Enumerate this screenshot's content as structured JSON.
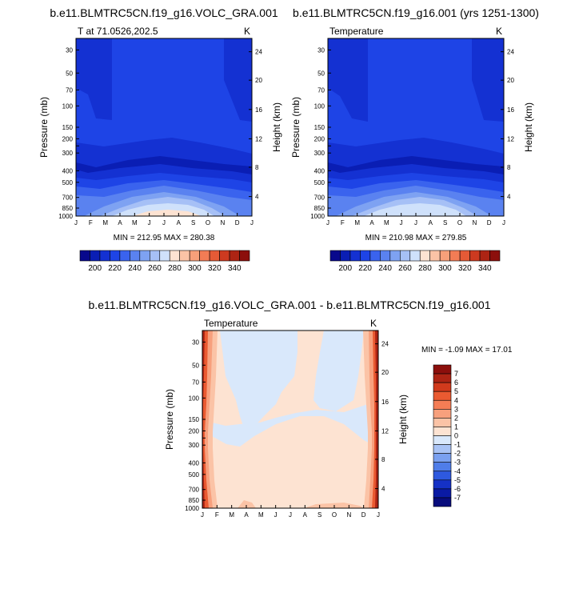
{
  "panels": [
    {
      "title": "b.e11.BLMTRC5CN.f19_g16.VOLC_GRA.001",
      "left_label": "T at 71.0526,202.5",
      "right_label": "K",
      "minmax": "MIN = 212.95 MAX = 280.38"
    },
    {
      "title": "b.e11.BLMTRC5CN.f19_g16.001 (yrs 1251-1300)",
      "left_label": "Temperature",
      "right_label": "K",
      "minmax": "MIN = 210.98 MAX = 279.85"
    },
    {
      "title": "b.e11.BLMTRC5CN.f19_g16.VOLC_GRA.001 - b.e11.BLMTRC5CN.f19_g16.001",
      "left_label": "Temperature",
      "right_label": "K",
      "minmax": "MIN =  -1.09 MAX =  17.01"
    }
  ],
  "chart_data": [
    {
      "type": "heatmap",
      "title": "b.e11.BLMTRC5CN.f19_g16.VOLC_GRA.001",
      "ylabel": "Pressure (mb)",
      "y2label": "Height (km)",
      "months": [
        "J",
        "F",
        "M",
        "A",
        "M",
        "J",
        "J",
        "A",
        "S",
        "O",
        "N",
        "D",
        "J"
      ],
      "pressure_ticks": [
        "30",
        "50",
        "70",
        "100",
        "150",
        "200",
        "250",
        "300",
        "400",
        "500",
        "700",
        "850",
        "1000"
      ],
      "height_ticks": [
        "24",
        "20",
        "16",
        "12",
        "8",
        "4"
      ],
      "min": 212.95,
      "max": 280.38
    },
    {
      "type": "heatmap",
      "title": "b.e11.BLMTRC5CN.f19_g16.001 (yrs 1251-1300)",
      "ylabel": "Pressure (mb)",
      "y2label": "Height (km)",
      "months": [
        "J",
        "F",
        "M",
        "A",
        "M",
        "J",
        "J",
        "A",
        "S",
        "O",
        "N",
        "D",
        "J"
      ],
      "pressure_ticks": [
        "30",
        "50",
        "70",
        "100",
        "150",
        "200",
        "250",
        "300",
        "400",
        "500",
        "700",
        "850",
        "1000"
      ],
      "height_ticks": [
        "24",
        "20",
        "16",
        "12",
        "8",
        "4"
      ],
      "min": 210.98,
      "max": 279.85
    },
    {
      "type": "heatmap",
      "title": "b.e11.BLMTRC5CN.f19_g16.VOLC_GRA.001 - b.e11.BLMTRC5CN.f19_g16.001",
      "ylabel": "Pressure (mb)",
      "y2label": "Height (km)",
      "months": [
        "J",
        "F",
        "M",
        "A",
        "M",
        "J",
        "J",
        "A",
        "S",
        "O",
        "N",
        "D",
        "J"
      ],
      "pressure_ticks": [
        "30",
        "50",
        "70",
        "100",
        "150",
        "200",
        "250",
        "300",
        "400",
        "500",
        "700",
        "850",
        "1000"
      ],
      "height_ticks": [
        "24",
        "20",
        "16",
        "12",
        "8",
        "4"
      ],
      "min": -1.09,
      "max": 17.01
    }
  ],
  "colorbar_top": {
    "labels": [
      "200",
      "220",
      "240",
      "260",
      "280",
      "300",
      "320",
      "340"
    ],
    "colors": [
      "#08088c",
      "#0a1eb4",
      "#1431d2",
      "#1e44e6",
      "#3a63ee",
      "#5a82f0",
      "#7ea2f2",
      "#a6c0f6",
      "#cfe1fb",
      "#fde3d2",
      "#fbc3a6",
      "#f8a07a",
      "#f27c55",
      "#e55a36",
      "#cd3a20",
      "#ad2414",
      "#8c0f0c"
    ]
  },
  "colorbar_diff": {
    "labels": [
      "7",
      "6",
      "5",
      "4",
      "3",
      "2",
      "1",
      "0",
      "-1",
      "-2",
      "-3",
      "-4",
      "-5",
      "-6",
      "-7"
    ],
    "colors": [
      "#8c0f0c",
      "#ad2414",
      "#d13a1c",
      "#ea5a31",
      "#f57d55",
      "#f7a07d",
      "#fbc3a6",
      "#fde3d2",
      "#d9e8fb",
      "#a9c3f5",
      "#7aa0f0",
      "#4f7de9",
      "#2e59df",
      "#1531c6",
      "#0a1aa4",
      "#080c7c"
    ]
  }
}
